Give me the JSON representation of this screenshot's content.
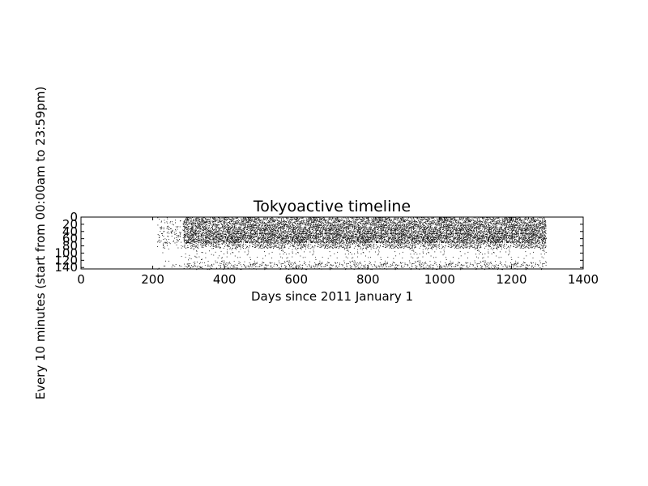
{
  "chart_data": {
    "type": "heatmap",
    "title": "Tokyoactive timeline",
    "xlabel": "Days since 2011 January 1",
    "ylabel": "Every 10 minutes (start from 00:00am to 23:59pm)",
    "xlim": [
      0,
      1400
    ],
    "ylim": [
      144,
      0
    ],
    "x_ticks": [
      0,
      200,
      400,
      600,
      800,
      1000,
      1200,
      1400
    ],
    "y_ticks": [
      0,
      20,
      40,
      60,
      80,
      100,
      120,
      140
    ],
    "grid": false,
    "legend": "none",
    "marker_color": "#000000",
    "activity_range_days": [
      210,
      1295
    ],
    "dense_range_days": [
      285,
      1295
    ],
    "activity_bands": [
      {
        "from_slot": 0,
        "to_slot": 20,
        "density": 0.35
      },
      {
        "from_slot": 20,
        "to_slot": 45,
        "density": 0.45
      },
      {
        "from_slot": 45,
        "to_slot": 70,
        "density": 0.5
      },
      {
        "from_slot": 70,
        "to_slot": 85,
        "density": 0.25
      },
      {
        "from_slot": 85,
        "to_slot": 125,
        "density": 0.03
      },
      {
        "from_slot": 125,
        "to_slot": 144,
        "density": 0.12
      }
    ]
  }
}
